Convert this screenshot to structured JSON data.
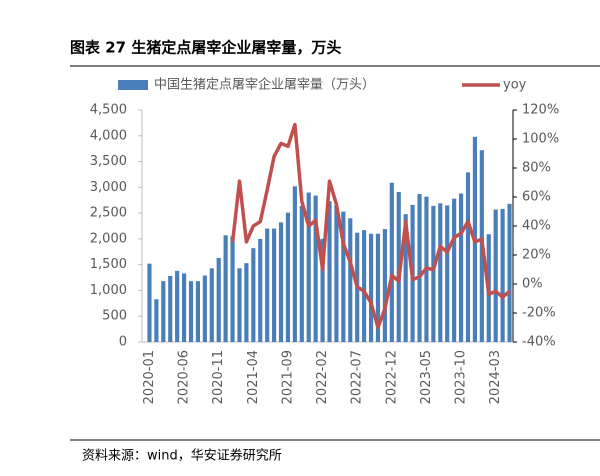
{
  "chart_data": {
    "type": "bar",
    "title": "图表 27  生猪定点屠宰企业屠宰量，万头",
    "source": "资料来源：wind，华安证券研究所",
    "categories": [
      "2020-01",
      null,
      null,
      null,
      null,
      "2020-06",
      null,
      null,
      null,
      null,
      "2020-11",
      null,
      null,
      null,
      null,
      "2021-04",
      null,
      null,
      null,
      null,
      "2021-09",
      null,
      null,
      null,
      null,
      "2022-02",
      null,
      null,
      null,
      null,
      "2022-07",
      null,
      null,
      null,
      null,
      "2022-12",
      null,
      null,
      null,
      null,
      "2023-05",
      null,
      null,
      null,
      null,
      "2023-10",
      null,
      null,
      null,
      null,
      "2024-03",
      null,
      null
    ],
    "series": [
      {
        "name": "中国生猪定点屠宰企业屠宰量（万头）",
        "type": "bar",
        "color": "#4a7ebb",
        "values": [
          1520,
          830,
          1180,
          1280,
          1380,
          1330,
          1180,
          1180,
          1290,
          1430,
          1630,
          2070,
          2050,
          1430,
          1530,
          1820,
          2000,
          2200,
          2200,
          2320,
          2510,
          3020,
          2640,
          2900,
          2840,
          2000,
          2730,
          2650,
          2530,
          2400,
          2120,
          2170,
          2100,
          2100,
          2190,
          3090,
          2910,
          2480,
          2660,
          2870,
          2820,
          2640,
          2690,
          2650,
          2780,
          2880,
          3290,
          3980,
          3720,
          2090,
          2570,
          2580,
          2680
        ]
      },
      {
        "name": "yoy",
        "type": "line",
        "axis": "y2",
        "color": "#c0504d",
        "values": [
          null,
          null,
          null,
          null,
          null,
          null,
          null,
          null,
          null,
          null,
          null,
          null,
          29,
          71,
          29,
          40,
          43,
          65,
          88,
          97,
          95,
          110,
          57,
          40,
          44,
          10,
          71,
          55,
          28,
          15,
          -2,
          -5,
          -13,
          -30,
          -17,
          6,
          2,
          43,
          3,
          5,
          11,
          10,
          26,
          22,
          32,
          35,
          43,
          29,
          31,
          -7,
          -5,
          -9,
          -5
        ]
      }
    ],
    "ylim": [
      0,
      4500
    ],
    "yticks": [
      0,
      500,
      {
        "value": 1000,
        "label": "1,000"
      },
      {
        "value": 1500,
        "label": "1,500"
      },
      {
        "value": 2000,
        "label": "2,000"
      },
      {
        "value": 2500,
        "label": "2,500"
      },
      {
        "value": 3000,
        "label": "3,000"
      },
      {
        "value": 3500,
        "label": "3,500"
      },
      {
        "value": 4000,
        "label": "4,000"
      },
      {
        "value": 4500,
        "label": "4,500"
      }
    ],
    "y2lim": [
      -40,
      120
    ],
    "y2ticks": [
      {
        "value": -40,
        "label": "-40%"
      },
      {
        "value": -20,
        "label": "-20%"
      },
      {
        "value": 0,
        "label": "0%"
      },
      {
        "value": 20,
        "label": "20%"
      },
      {
        "value": 40,
        "label": "40%"
      },
      {
        "value": 60,
        "label": "60%"
      },
      {
        "value": 80,
        "label": "80%"
      },
      {
        "value": 100,
        "label": "100%"
      },
      {
        "value": 120,
        "label": "120%"
      }
    ]
  }
}
